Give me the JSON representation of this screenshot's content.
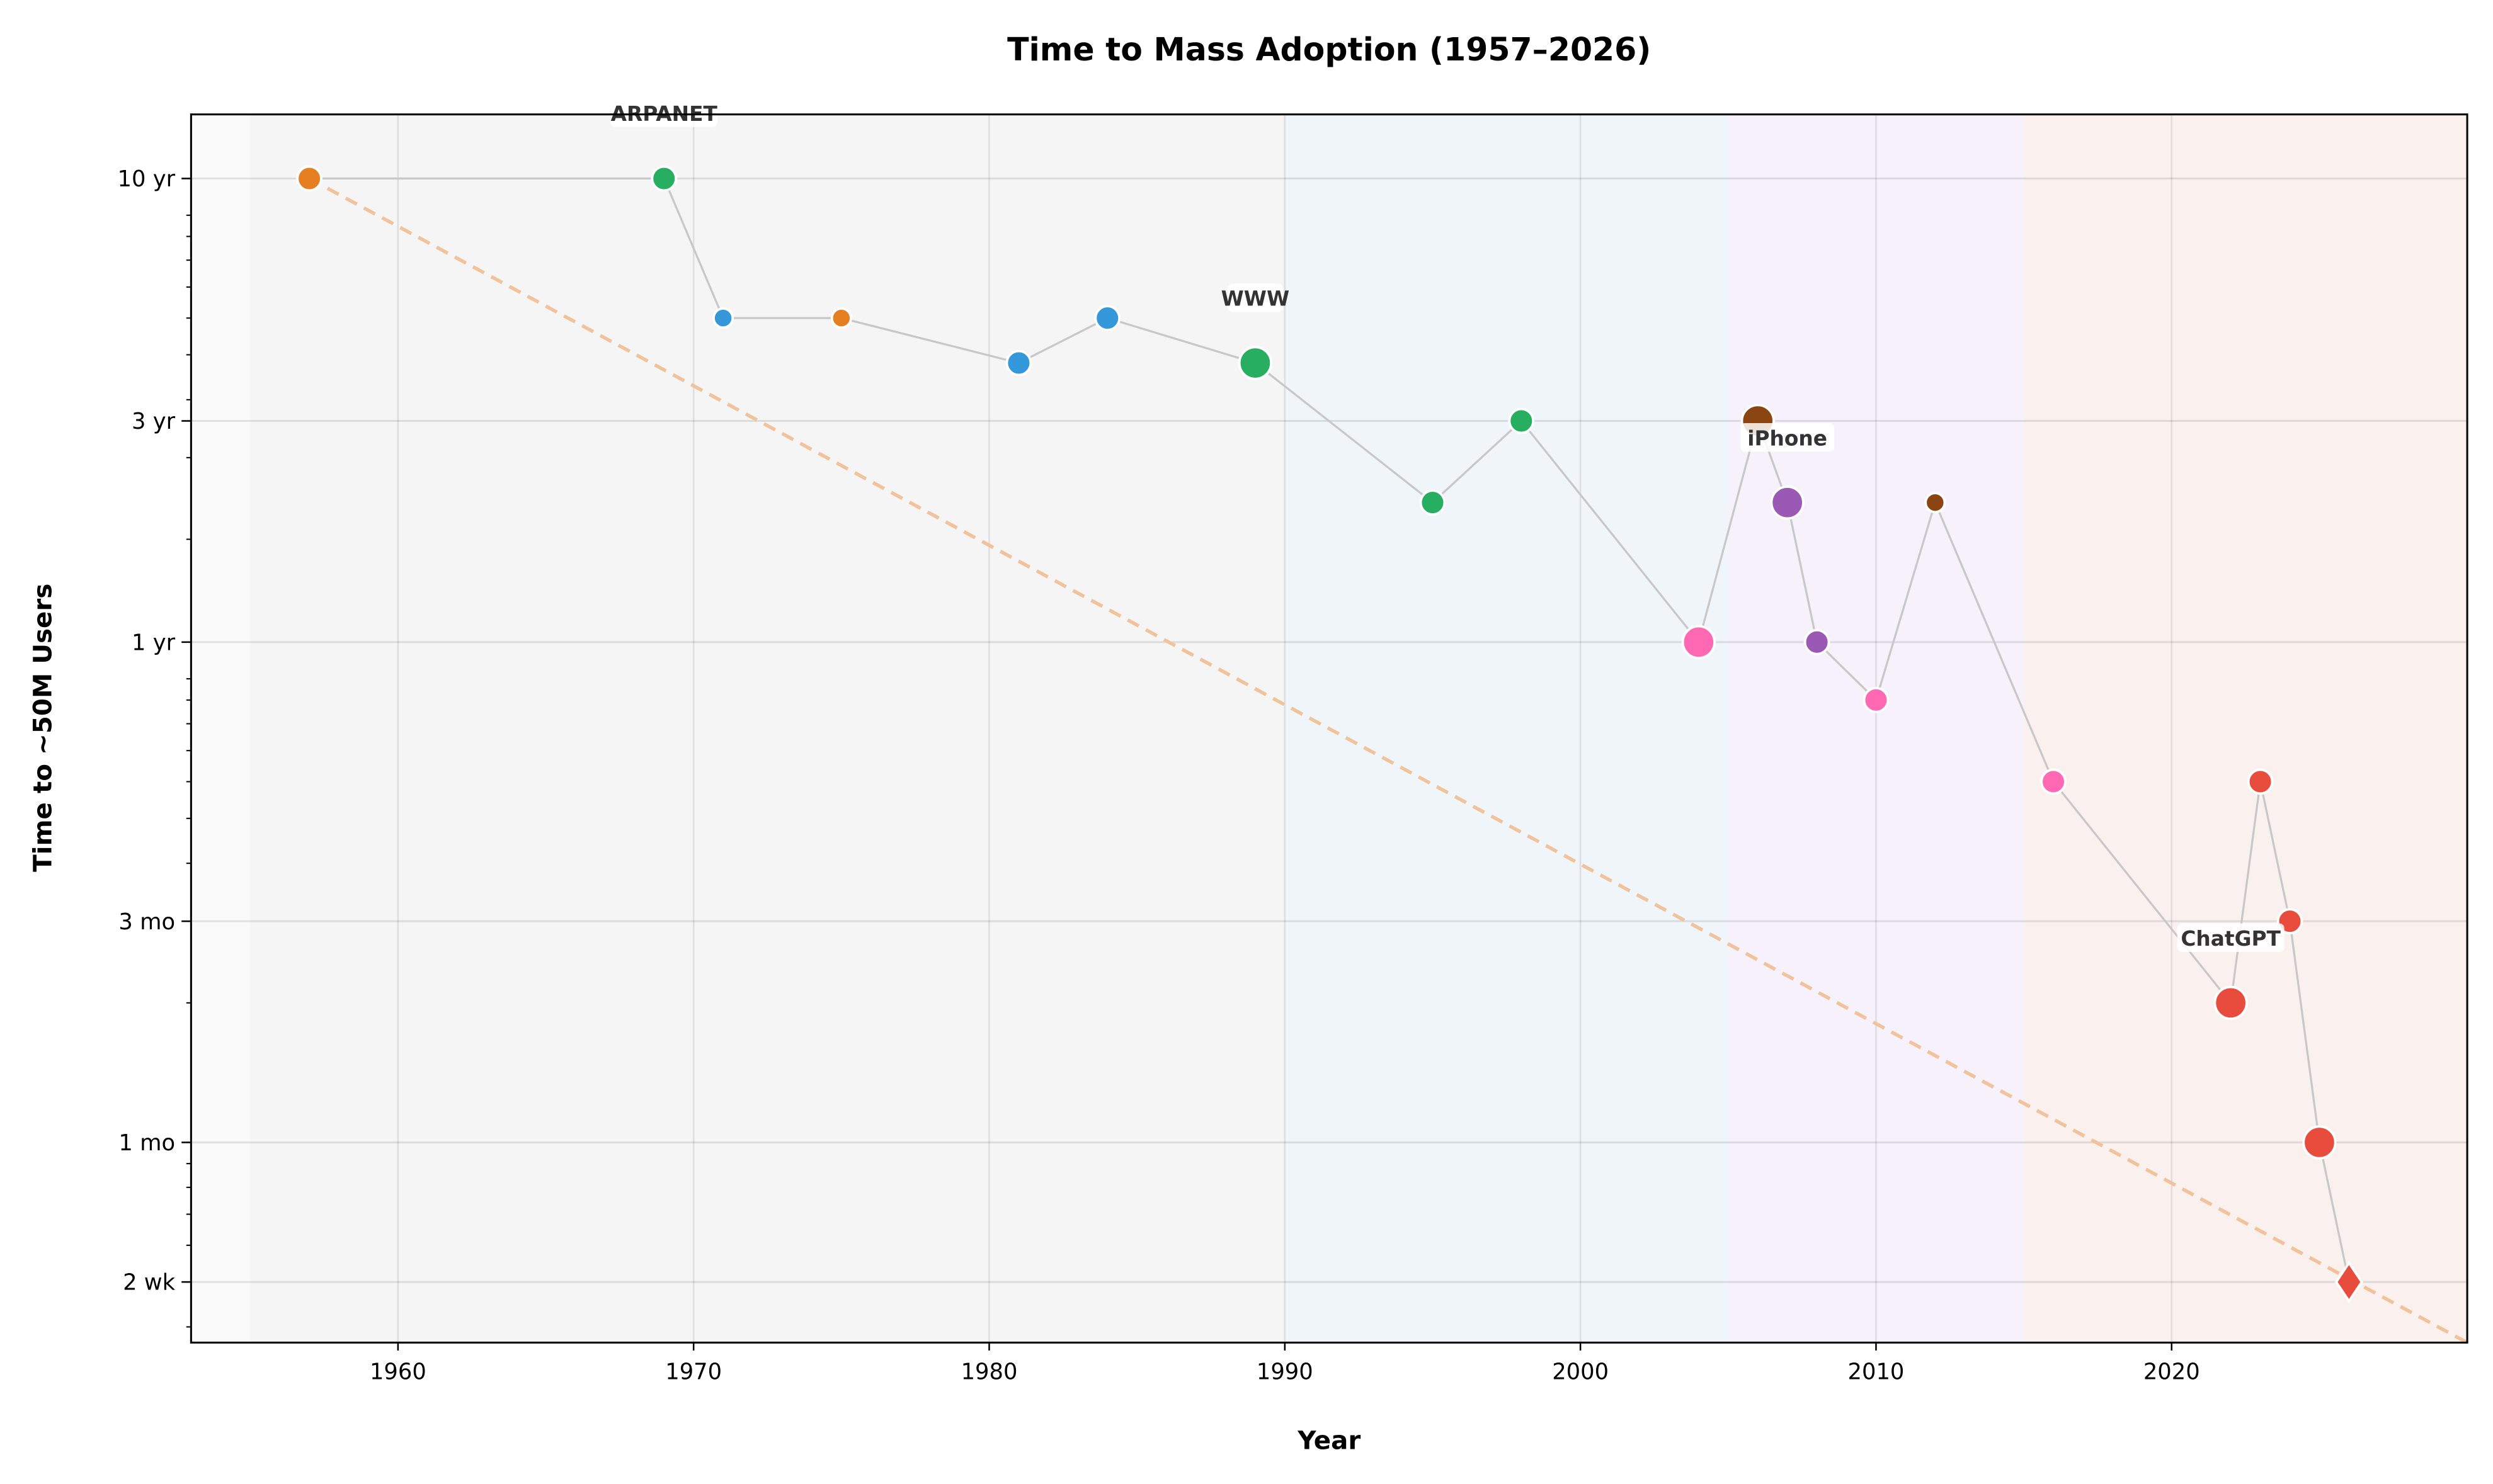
{
  "chart_data": {
    "type": "scatter",
    "title": "Time to Mass Adoption (1957–2026)",
    "xlabel": "Year",
    "ylabel": "Time to ~50M Users",
    "x_scale": "linear",
    "y_scale": "log",
    "y_units": "months",
    "xlim": [
      1953,
      2030
    ],
    "ylim": [
      0.37,
      165
    ],
    "grid": true,
    "x_ticks": [
      1960,
      1970,
      1980,
      1990,
      2000,
      2010,
      2020
    ],
    "x_tick_labels": [
      "1960",
      "1970",
      "1980",
      "1990",
      "2000",
      "2010",
      "2020"
    ],
    "y_ticks": [
      120,
      36,
      12,
      3,
      1,
      0.5
    ],
    "y_tick_labels": [
      "10 yr",
      "3 yr",
      "1 yr",
      "3 mo",
      "1 mo",
      "2 wk"
    ],
    "eras": [
      {
        "from": 1953,
        "to": 1955,
        "color": "#fafafa"
      },
      {
        "from": 1955,
        "to": 1990,
        "color": "#f5f5f5"
      },
      {
        "from": 1990,
        "to": 2005,
        "color": "#f0f5fa"
      },
      {
        "from": 2005,
        "to": 2015,
        "color": "#f6f1fb"
      },
      {
        "from": 2015,
        "to": 2030,
        "color": "#faf1ef"
      }
    ],
    "points": [
      {
        "x": 1957,
        "y": 120,
        "color": "#e67e22",
        "size": "medium"
      },
      {
        "x": 1969,
        "y": 120,
        "color": "#27ae60",
        "size": "medium",
        "label": "ARPANET"
      },
      {
        "x": 1971,
        "y": 60,
        "color": "#3498db",
        "size": "small"
      },
      {
        "x": 1975,
        "y": 60,
        "color": "#e67e22",
        "size": "small"
      },
      {
        "x": 1981,
        "y": 48,
        "color": "#3498db",
        "size": "medium"
      },
      {
        "x": 1984,
        "y": 60,
        "color": "#3498db",
        "size": "medium"
      },
      {
        "x": 1989,
        "y": 48,
        "color": "#27ae60",
        "size": "large",
        "label": "WWW"
      },
      {
        "x": 1995,
        "y": 24,
        "color": "#27ae60",
        "size": "medium"
      },
      {
        "x": 1998,
        "y": 36,
        "color": "#27ae60",
        "size": "medium"
      },
      {
        "x": 2004,
        "y": 12,
        "color": "#ff69b4",
        "size": "large"
      },
      {
        "x": 2006,
        "y": 36,
        "color": "#8b4513",
        "size": "large"
      },
      {
        "x": 2007,
        "y": 24,
        "color": "#9b59b6",
        "size": "large",
        "label": "iPhone"
      },
      {
        "x": 2008,
        "y": 12,
        "color": "#9b59b6",
        "size": "medium"
      },
      {
        "x": 2010,
        "y": 9,
        "color": "#ff69b4",
        "size": "medium"
      },
      {
        "x": 2012,
        "y": 24,
        "color": "#8b4513",
        "size": "small"
      },
      {
        "x": 2016,
        "y": 6,
        "color": "#ff69b4",
        "size": "medium"
      },
      {
        "x": 2022,
        "y": 2,
        "color": "#e74c3c",
        "size": "large",
        "label": "ChatGPT"
      },
      {
        "x": 2023,
        "y": 6,
        "color": "#e74c3c",
        "size": "medium"
      },
      {
        "x": 2024,
        "y": 3,
        "color": "#e74c3c",
        "size": "medium"
      },
      {
        "x": 2025,
        "y": 1,
        "color": "#e74c3c",
        "size": "large"
      },
      {
        "x": 2026,
        "y": 0.5,
        "color": "#e74c3c",
        "size": "large",
        "marker": "diamond"
      }
    ],
    "trend_line": {
      "x": [
        1957,
        2030
      ],
      "y": [
        120,
        0.37
      ],
      "color": "#f0c39c",
      "style": "dashed"
    },
    "connector_color": "#c8c8c8"
  }
}
